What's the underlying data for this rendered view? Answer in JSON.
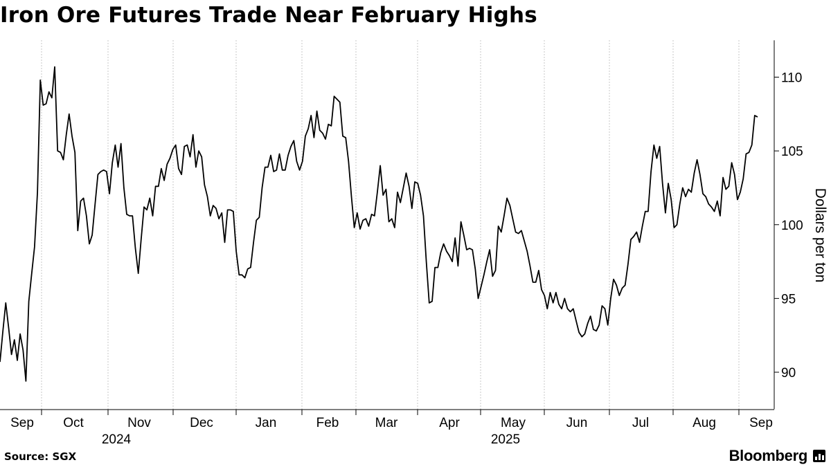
{
  "header": {
    "title": "Iron Ore Futures Trade Near February Highs"
  },
  "footer": {
    "source": "Source: SGX",
    "brand": "Bloomberg",
    "brand_icon": "bloomberg-terminal-icon"
  },
  "chart_data": {
    "type": "line",
    "title": "Iron Ore Futures Trade Near February Highs",
    "ylabel": "Dollars per ton",
    "ylim": [
      87.5,
      112.5
    ],
    "yticks": [
      90,
      95,
      100,
      105,
      110
    ],
    "y_axis_position": "right",
    "grid": "vertical dotted lines at month boundaries",
    "legend": "none",
    "month_labels": [
      "Sep",
      "Oct",
      "Nov",
      "Dec",
      "Jan",
      "Feb",
      "Mar",
      "Apr",
      "May",
      "Jun",
      "Jul",
      "Aug",
      "Sep"
    ],
    "year_labels": [
      {
        "label": "2024",
        "under": "Nov"
      },
      {
        "label": "2025",
        "under": "May"
      }
    ],
    "series": [
      {
        "values": [
          90.7,
          92.8,
          94.7,
          93.0,
          91.2,
          92.2,
          90.8,
          92.6,
          91.5,
          89.4,
          94.8,
          96.7,
          98.5,
          102.2,
          109.8,
          108.1,
          108.2,
          109.0,
          108.6,
          110.7,
          105.0,
          104.9,
          104.4,
          106.1,
          107.5,
          106.0,
          104.9,
          99.6,
          101.6,
          101.8,
          100.6,
          98.7,
          99.3,
          101.4,
          103.4,
          103.6,
          103.7,
          103.6,
          102.1,
          104.2,
          105.4,
          103.9,
          105.5,
          102.5,
          100.7,
          100.6,
          100.6,
          98.4,
          96.7,
          99.0,
          101.2,
          101.0,
          101.8,
          100.6,
          102.6,
          102.6,
          103.8,
          103.0,
          104.1,
          104.5,
          105.1,
          105.4,
          103.8,
          103.4,
          105.3,
          105.4,
          104.6,
          106.1,
          103.9,
          105.0,
          104.6,
          102.7,
          101.9,
          100.6,
          101.3,
          101.1,
          100.4,
          100.8,
          98.8,
          101.0,
          101.0,
          100.9,
          98.2,
          96.6,
          96.6,
          96.4,
          97.0,
          97.1,
          98.8,
          100.3,
          100.5,
          102.5,
          103.9,
          103.9,
          104.7,
          103.6,
          103.7,
          104.8,
          103.7,
          103.7,
          104.7,
          105.3,
          105.7,
          104.3,
          103.7,
          104.3,
          106.0,
          106.5,
          107.4,
          105.9,
          107.7,
          106.4,
          106.2,
          105.8,
          106.8,
          106.7,
          108.7,
          108.5,
          108.3,
          106.0,
          105.9,
          104.3,
          101.9,
          99.8,
          100.8,
          99.7,
          100.3,
          100.4,
          99.9,
          100.7,
          100.6,
          102.2,
          104.0,
          102.0,
          102.4,
          100.2,
          100.4,
          99.8,
          102.2,
          101.5,
          102.5,
          103.5,
          102.6,
          101.1,
          102.9,
          102.8,
          102.0,
          100.6,
          97.5,
          94.7,
          94.8,
          97.1,
          97.1,
          98.1,
          98.7,
          98.2,
          97.9,
          97.5,
          99.1,
          97.2,
          100.2,
          99.3,
          98.3,
          98.4,
          98.3,
          97.0,
          95.0,
          95.8,
          96.6,
          97.5,
          98.3,
          96.5,
          96.9,
          99.9,
          99.5,
          100.6,
          101.8,
          101.3,
          100.4,
          99.5,
          99.4,
          99.6,
          98.9,
          98.2,
          97.2,
          96.1,
          96.1,
          96.9,
          95.6,
          95.2,
          94.3,
          95.4,
          94.7,
          95.4,
          94.6,
          94.3,
          95.0,
          94.3,
          94.1,
          94.3,
          93.5,
          92.7,
          92.4,
          92.6,
          93.3,
          93.8,
          92.9,
          92.8,
          93.2,
          94.5,
          94.3,
          93.2,
          95.0,
          96.3,
          95.9,
          95.2,
          95.7,
          95.9,
          97.3,
          99.0,
          99.2,
          99.5,
          98.8,
          99.9,
          100.9,
          100.9,
          103.6,
          105.4,
          104.5,
          105.3,
          102.8,
          100.8,
          102.8,
          101.7,
          99.8,
          100.0,
          101.4,
          102.5,
          101.9,
          102.4,
          102.2,
          103.5,
          104.4,
          103.4,
          102.1,
          101.9,
          101.4,
          101.2,
          100.9,
          101.6,
          100.6,
          103.2,
          102.4,
          102.6,
          104.2,
          103.4,
          101.7,
          102.2,
          103.1,
          104.8,
          104.9,
          105.4,
          107.4,
          107.3
        ]
      }
    ]
  }
}
